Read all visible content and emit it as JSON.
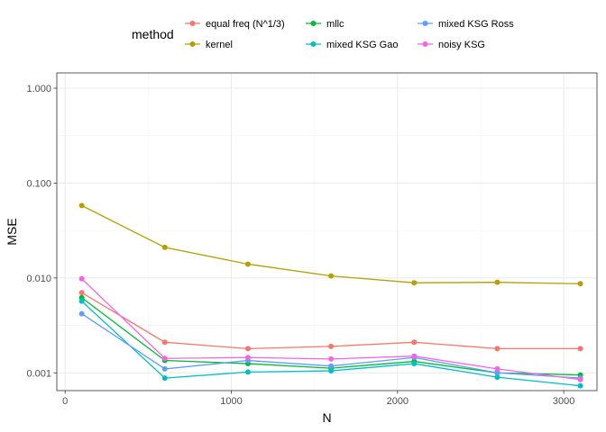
{
  "chart_data": {
    "type": "line",
    "xlabel": "N",
    "ylabel": "MSE",
    "x_scale": "linear",
    "y_scale": "log10",
    "xlim": [
      -50,
      3200
    ],
    "ylim": [
      0.00065,
      1.45
    ],
    "x_ticks": [
      0,
      1000,
      2000,
      3000
    ],
    "x_tick_labels": [
      "0",
      "1000",
      "2000",
      "3000"
    ],
    "y_ticks": [
      0.001,
      0.01,
      0.1,
      1
    ],
    "y_tick_labels": [
      "0.001",
      "0.010",
      "0.100",
      "1.000"
    ],
    "grid": true,
    "legend": {
      "title": "method",
      "position": "top"
    },
    "x": [
      100,
      600,
      1100,
      1600,
      2100,
      2600,
      3100
    ],
    "series": [
      {
        "name": "equal freq (N^1/3)",
        "color": "#F8766D",
        "values": [
          0.007,
          0.0021,
          0.0018,
          0.0019,
          0.0021,
          0.0018,
          0.0018
        ]
      },
      {
        "name": "kernel",
        "color": "#B79F00",
        "values": [
          0.058,
          0.021,
          0.014,
          0.0105,
          0.0089,
          0.009,
          0.0087
        ]
      },
      {
        "name": "mllc",
        "color": "#00BA38",
        "values": [
          0.0062,
          0.00135,
          0.00125,
          0.00112,
          0.00132,
          0.001,
          0.00095
        ]
      },
      {
        "name": "mixed KSG Gao",
        "color": "#00BFC4",
        "values": [
          0.0057,
          0.00088,
          0.00102,
          0.00105,
          0.00125,
          0.0009,
          0.00073
        ]
      },
      {
        "name": "mixed KSG Ross",
        "color": "#619CFF",
        "values": [
          0.0042,
          0.0011,
          0.00135,
          0.00118,
          0.00145,
          0.001,
          0.00088
        ]
      },
      {
        "name": "noisy KSG",
        "color": "#F564E3",
        "values": [
          0.0098,
          0.00142,
          0.00145,
          0.0014,
          0.0015,
          0.0011,
          0.00085
        ]
      }
    ]
  }
}
